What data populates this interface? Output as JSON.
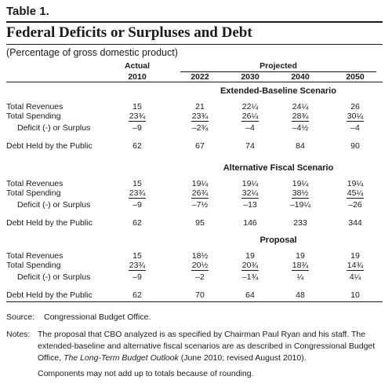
{
  "table_label": "Table 1.",
  "title": "Federal Deficits or Surpluses and Debt",
  "subtitle": "(Percentage of gross domestic product)",
  "header": {
    "actual": "Actual",
    "projected": "Projected",
    "years": [
      "2010",
      "2022",
      "2030",
      "2040",
      "2050"
    ]
  },
  "sections": [
    {
      "name": "Extended-Baseline Scenario",
      "rows": [
        {
          "label": "Total Revenues",
          "values": [
            "15",
            "21",
            "22¼",
            "24¼",
            "26"
          ]
        },
        {
          "label": "Total Spending",
          "values": [
            "23¾",
            "23¾",
            "26¼",
            "28¾",
            "30¼"
          ]
        },
        {
          "label": "Deficit (-) or Surplus",
          "values": [
            "–9",
            "–2¾",
            "–4",
            "–4½",
            "–4"
          ]
        },
        {
          "label": "Debt Held by the Public",
          "values": [
            "62",
            "67",
            "74",
            "84",
            "90"
          ]
        }
      ]
    },
    {
      "name": "Alternative Fiscal Scenario",
      "rows": [
        {
          "label": "Total Revenues",
          "values": [
            "15",
            "19¼",
            "19¼",
            "19¼",
            "19¼"
          ]
        },
        {
          "label": "Total Spending",
          "values": [
            "23¾",
            "26¾",
            "32¼",
            "38½",
            "45¼"
          ]
        },
        {
          "label": "Deficit (-) or Surplus",
          "values": [
            "–9",
            "–7½",
            "–13",
            "–19¼",
            "–26"
          ]
        },
        {
          "label": "Debt Held by the Public",
          "values": [
            "62",
            "95",
            "146",
            "233",
            "344"
          ]
        }
      ]
    },
    {
      "name": "Proposal",
      "rows": [
        {
          "label": "Total Revenues",
          "values": [
            "15",
            "18½",
            "19",
            "19",
            "19"
          ]
        },
        {
          "label": "Total Spending",
          "values": [
            "23¾",
            "20½",
            "20¾",
            "18¾",
            "14¾"
          ]
        },
        {
          "label": "Deficit (-) or Surplus",
          "values": [
            "–9",
            "–2",
            "–1¾",
            "¼",
            "4¼"
          ]
        },
        {
          "label": "Debt Held by the Public",
          "values": [
            "62",
            "70",
            "64",
            "48",
            "10"
          ]
        }
      ]
    }
  ],
  "source_label": "Source:",
  "source_text": "Congressional Budget Office.",
  "notes_label": "Notes:",
  "notes_line1": "The proposal that CBO analyzed is as specified by Chairman Paul Ryan and his staff. The",
  "notes_line2": "extended-baseline and alternative fiscal scenarios are as described in Congressional Budget",
  "notes_line3_pre": "Office, ",
  "notes_line3_title": "The Long-Term Budget Outlook",
  "notes_line3_post": " (June 2010; revised August 2010).",
  "notes_line4": "Components may not add up to totals because of rounding."
}
